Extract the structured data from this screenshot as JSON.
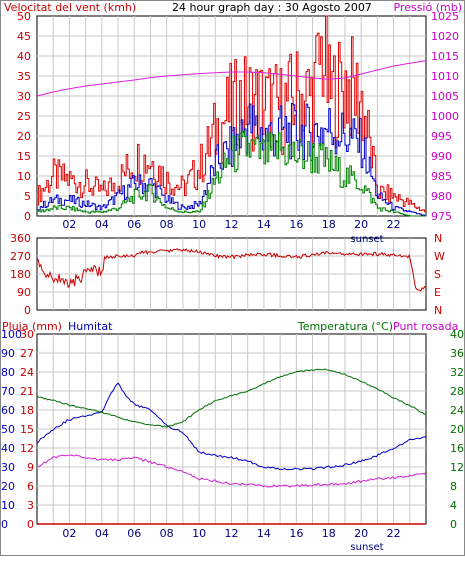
{
  "header": {
    "wind_title": "Velocitat del vent (kmh)",
    "graph_title": "24 hour graph day : 30 Agosto 2007",
    "pressure_title": "Pressió (mb)"
  },
  "lower_header": {
    "rain_title": "Pluja (mm)",
    "humidity_title": "Humitat",
    "temperature_title": "Temperatura (°C)",
    "dewpoint_title": "Punt rosada"
  },
  "x_axis": {
    "ticks": [
      "02",
      "04",
      "06",
      "08",
      "10",
      "12",
      "14",
      "16",
      "18",
      "20",
      "22"
    ],
    "sunset_label": "sunset"
  },
  "colors": {
    "wind_avg": "#008000",
    "wind_speed": "#0000c8",
    "wind_gust": "#e00000",
    "pressure": "#e020e0",
    "direction": "#cc0000",
    "humidity": "#0000c0",
    "temperature": "#007000",
    "dewpoint": "#d020d0",
    "rain": "#cc0000",
    "grid": "#c8c8c8"
  },
  "chart_data": [
    {
      "type": "line",
      "title": "24 hour graph day : 30 Agosto 2007",
      "ylabel": "Velocitat del vent (kmh)",
      "y2label": "Pressió (mb)",
      "xlim": [
        0,
        24
      ],
      "ylim": [
        0,
        50
      ],
      "y2lim": [
        975,
        1025
      ],
      "yticks": [
        "0",
        "5",
        "10",
        "15",
        "20",
        "25",
        "30",
        "35",
        "40",
        "45",
        "50"
      ],
      "y2ticks": [
        "975",
        "980",
        "985",
        "990",
        "995",
        "1000",
        "1005",
        "1010",
        "1015",
        "1020",
        "1025"
      ],
      "series": [
        {
          "name": "gust",
          "color_key": "wind_gust",
          "x": [
            0,
            1,
            2,
            3,
            4,
            5,
            6,
            7,
            8,
            9,
            10,
            11,
            12,
            13,
            14,
            15,
            16,
            17,
            17.6,
            18,
            19,
            20,
            21,
            22,
            23,
            24
          ],
          "y": [
            5,
            10,
            9,
            8,
            6,
            9,
            14,
            14,
            9,
            7,
            12,
            21,
            27,
            29,
            28,
            27,
            30,
            30,
            42,
            30,
            33,
            29,
            6,
            5,
            3,
            1
          ]
        },
        {
          "name": "speed",
          "color_key": "wind_speed",
          "x": [
            0,
            1,
            2,
            3,
            4,
            5,
            6,
            7,
            8,
            9,
            10,
            11,
            12,
            13,
            14,
            15,
            16,
            17,
            18,
            19,
            20,
            21,
            22,
            23,
            24
          ],
          "y": [
            2,
            4,
            4,
            3,
            2,
            5,
            8,
            8,
            4,
            2,
            3,
            13,
            17,
            23,
            20,
            21,
            21,
            21,
            22,
            20,
            18,
            5,
            2,
            1,
            0
          ]
        },
        {
          "name": "average",
          "color_key": "wind_avg",
          "x": [
            0,
            1,
            2,
            3,
            4,
            5,
            6,
            7,
            8,
            9,
            10,
            11,
            12,
            13,
            14,
            15,
            16,
            17,
            18,
            19,
            20,
            21,
            22,
            23,
            24
          ],
          "y": [
            1,
            2,
            2,
            1,
            1,
            2,
            5,
            6,
            2,
            1,
            1,
            9,
            15,
            17,
            15,
            17,
            15,
            15,
            13,
            10,
            8,
            2,
            1,
            0,
            0
          ]
        },
        {
          "name": "pressure",
          "color_key": "pressure",
          "axis": "right",
          "x": [
            0,
            1,
            2,
            3,
            4,
            5,
            6,
            7,
            8,
            9,
            10,
            11,
            12,
            13,
            14,
            15,
            16,
            17,
            18,
            19,
            20,
            21,
            22,
            23,
            24
          ],
          "y": [
            1005,
            1006,
            1006.8,
            1007.5,
            1008,
            1008.5,
            1009,
            1009.6,
            1010,
            1010.3,
            1010.6,
            1010.8,
            1011,
            1011,
            1010.8,
            1010.4,
            1010,
            1009.5,
            1009.2,
            1009.5,
            1010.5,
            1011.5,
            1012.5,
            1013.2,
            1013.8
          ]
        }
      ]
    },
    {
      "type": "line",
      "title": "",
      "ylim": [
        0,
        360
      ],
      "yticks": [
        "0",
        "90",
        "180",
        "270",
        "360"
      ],
      "right_labels": [
        "N",
        "W",
        "S",
        "E",
        "N"
      ],
      "series": [
        {
          "name": "direction",
          "color_key": "direction",
          "x": [
            0,
            0.5,
            1,
            1.5,
            2,
            2.5,
            3,
            3.5,
            4,
            4.2,
            5,
            6,
            6.2,
            7,
            8,
            9,
            10,
            11,
            12,
            13,
            14,
            15,
            16,
            17,
            18,
            19,
            20,
            21,
            22,
            23,
            23.4,
            24
          ],
          "y": [
            240,
            180,
            150,
            165,
            120,
            160,
            175,
            200,
            190,
            265,
            268,
            270,
            285,
            290,
            295,
            300,
            290,
            270,
            265,
            275,
            280,
            270,
            265,
            275,
            285,
            275,
            280,
            280,
            275,
            270,
            100,
            110
          ]
        }
      ]
    },
    {
      "type": "line",
      "title": "",
      "ylim": [
        0,
        100
      ],
      "y2lim": [
        0,
        40
      ],
      "yticks_rain": [
        "0",
        "3",
        "6",
        "9",
        "12",
        "15",
        "18",
        "21",
        "24",
        "27",
        "30"
      ],
      "yticks_humidity": [
        "0",
        "10",
        "20",
        "30",
        "40",
        "50",
        "60",
        "70",
        "80",
        "90",
        "100"
      ],
      "y2ticks": [
        "0",
        "4",
        "8",
        "12",
        "16",
        "20",
        "24",
        "28",
        "32",
        "36",
        "40"
      ],
      "series": [
        {
          "name": "humidity",
          "color_key": "humidity",
          "x": [
            0,
            1,
            2,
            3,
            4,
            4.5,
            5,
            5.5,
            6,
            7,
            8,
            9,
            10,
            11,
            12,
            13,
            14,
            15,
            16,
            17,
            18,
            19,
            20,
            21,
            22,
            23,
            24
          ],
          "y": [
            43,
            50,
            55,
            57,
            59,
            68,
            74,
            67,
            63,
            60,
            52,
            48,
            38,
            36,
            35,
            33,
            30,
            29,
            29,
            29,
            30,
            31,
            33,
            36,
            40,
            44,
            46
          ]
        },
        {
          "name": "temperature",
          "color_key": "temperature",
          "axis": "right",
          "x": [
            0,
            1,
            2,
            3,
            4,
            5,
            6,
            7,
            8,
            9,
            10,
            11,
            12,
            13,
            14,
            15,
            16,
            17,
            18,
            19,
            20,
            21,
            22,
            23,
            24
          ],
          "y": [
            26.8,
            26,
            25,
            24.3,
            23.5,
            22.5,
            21.5,
            20.8,
            20.5,
            21.5,
            24,
            26,
            27,
            28,
            29.5,
            31,
            32,
            32.5,
            32.5,
            31.5,
            30,
            28.5,
            26.5,
            25,
            23
          ]
        },
        {
          "name": "dewpoint",
          "color_key": "dewpoint",
          "axis": "right",
          "x": [
            0,
            1,
            2,
            3,
            4,
            5,
            6,
            7,
            8,
            9,
            10,
            11,
            12,
            13,
            14,
            15,
            16,
            17,
            18,
            19,
            20,
            21,
            22,
            23,
            24
          ],
          "y": [
            12,
            14,
            14.5,
            14,
            13.5,
            13.5,
            14,
            13,
            12,
            11,
            9.5,
            9,
            8.5,
            8.3,
            8,
            8,
            8,
            8.2,
            8.4,
            8.5,
            9,
            9.5,
            9.8,
            10.2,
            10.5
          ]
        },
        {
          "name": "rain",
          "color_key": "rain",
          "axis": "rain",
          "x": [
            0,
            24
          ],
          "y": [
            0,
            0
          ]
        }
      ]
    }
  ]
}
